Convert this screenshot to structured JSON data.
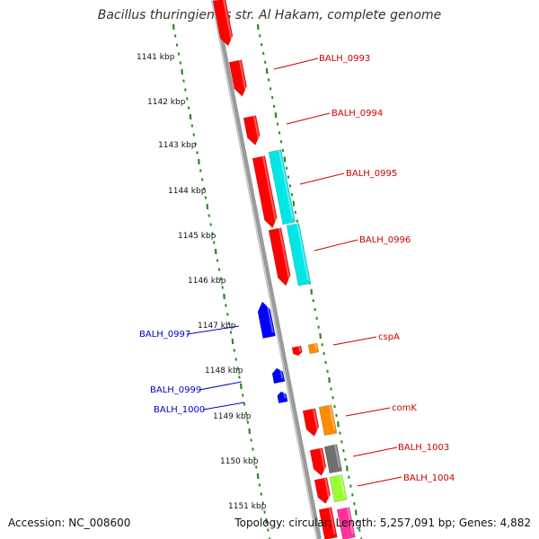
{
  "title": "Bacillus thuringiensis str. Al Hakam, complete genome",
  "footer": {
    "accession": "Accession: NC_008600",
    "summary": "Topology: circular; Length: 5,257,091 bp; Genes: 4,882"
  },
  "ruler": {
    "labels": [
      "1141 kbp",
      "1142 kbp",
      "1143 kbp",
      "1144 kbp",
      "1145 kbp",
      "1146 kbp",
      "1147 kbp",
      "1148 kbp",
      "1149 kbp",
      "1150 kbp",
      "1151 kbp"
    ]
  },
  "colors": {
    "forward_cds": "#ff0000",
    "reverse_cds": "#0000ff",
    "cyan_feature": "#00e6e6",
    "orange_feature": "#ff8c00",
    "gray_feature": "#707070",
    "green_feature": "#99ff33",
    "pink_feature": "#ff3399",
    "forward_label": "#cc0000",
    "reverse_label": "#0000cc",
    "ruler_tick": "#228b22",
    "backbone": "#888888"
  },
  "right_labels": [
    {
      "text": "BALH_0993"
    },
    {
      "text": "BALH_0994"
    },
    {
      "text": "BALH_0995"
    },
    {
      "text": "BALH_0996"
    },
    {
      "text": "cspA"
    },
    {
      "text": "comK"
    },
    {
      "text": "BALH_1003"
    },
    {
      "text": "BALH_1004"
    }
  ],
  "left_labels": [
    {
      "text": "BALH_0997"
    },
    {
      "text": "BALH_0999"
    },
    {
      "text": "BALH_1000"
    }
  ]
}
